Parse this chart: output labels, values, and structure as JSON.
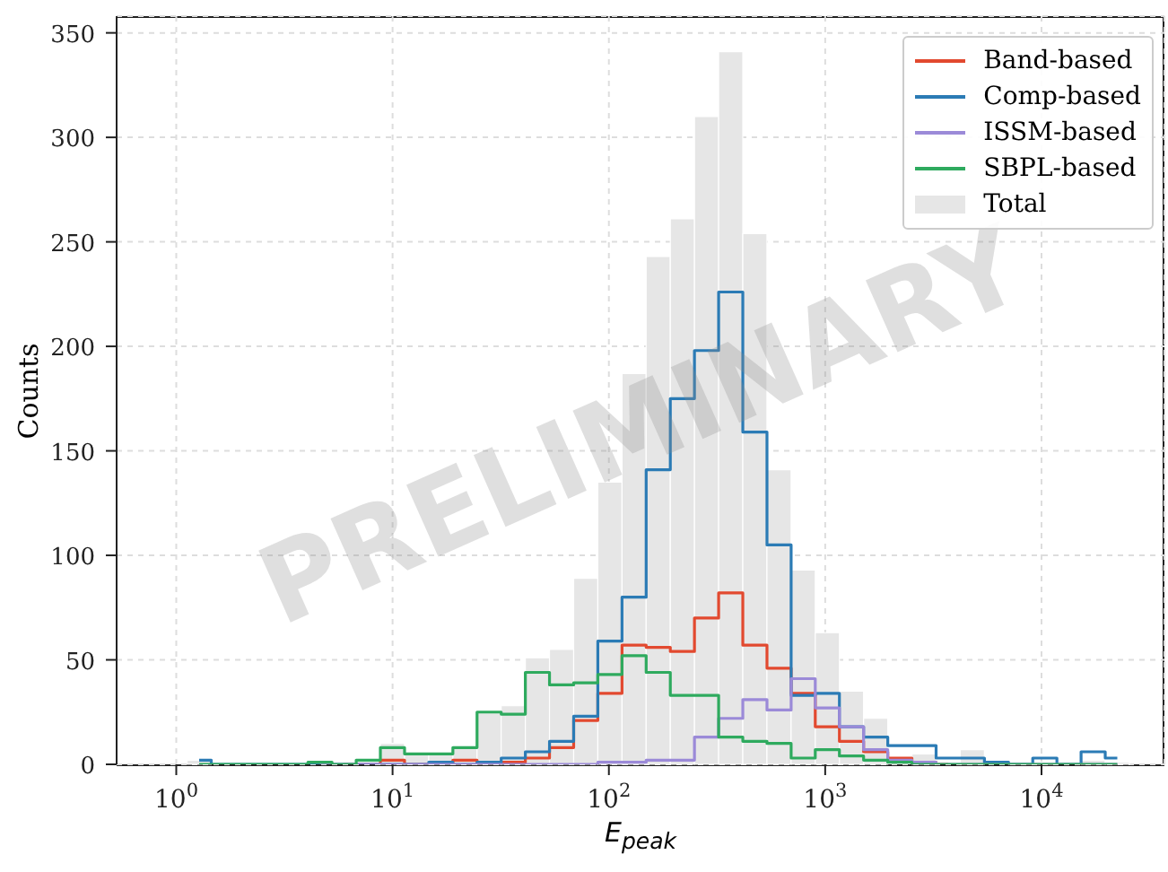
{
  "chart_data": {
    "type": "histogram",
    "xlabel": "E$_{peak}$",
    "ylabel": "Counts",
    "log": "x",
    "bins": [
      1.122,
      1.451,
      1.877,
      2.427,
      3.139,
      4.06,
      5.251,
      6.79,
      8.782,
      11.36,
      14.69,
      19,
      24.57,
      31.78,
      41.1,
      53.15,
      68.74,
      88.9,
      115,
      148.7,
      192.3,
      248.7,
      321.6,
      416,
      538,
      695.8,
      900,
      1164,
      1505,
      1947,
      2518,
      3256,
      4211,
      5446,
      7044,
      9110,
      11780,
      15240,
      19710,
      25490
    ],
    "series": [
      {
        "name": "Band-based",
        "type": "step",
        "color": "#e2492f",
        "x": [
          5.971,
          7.722,
          9.989,
          12.92,
          16.71,
          21.61,
          27.95,
          36.14,
          46.74,
          60.44,
          78.18,
          101.1,
          130.8,
          169.1,
          218.7,
          282.8,
          365.8,
          473.2,
          612,
          791.3,
          1023,
          1323,
          1712,
          2214,
          2863,
          3703
        ],
        "values": [
          0,
          0,
          2,
          0,
          0,
          2,
          1,
          1,
          3,
          8,
          21,
          34,
          57,
          56,
          54,
          70,
          82,
          57,
          46,
          34,
          18,
          11,
          6,
          3,
          1,
          0
        ]
      },
      {
        "name": "Comp-based",
        "type": "step",
        "color": "#2b7bb5",
        "x": [
          1.276,
          1.651,
          2.135,
          2.761,
          3.57,
          4.617,
          5.971,
          7.722,
          9.989,
          12.92,
          16.71,
          21.61,
          27.95,
          36.14,
          46.74,
          60.44,
          78.18,
          101.1,
          130.8,
          169.1,
          218.7,
          282.8,
          365.8,
          473.2,
          612,
          791.3,
          1023,
          1323,
          1712,
          2214,
          2863,
          3703,
          4790,
          6194,
          8012,
          10360,
          13400,
          17330,
          22410
        ],
        "values": [
          2,
          0,
          0,
          0,
          0,
          0,
          0,
          0,
          0,
          0,
          1,
          0,
          1,
          3,
          6,
          11,
          23,
          59,
          80,
          141,
          175,
          198,
          226,
          159,
          105,
          33,
          34,
          18,
          13,
          9,
          9,
          3,
          3,
          1,
          0,
          3,
          0,
          6,
          3
        ]
      },
      {
        "name": "ISSM-based",
        "type": "step",
        "color": "#9b8ad8",
        "x": [
          4.617,
          5.971,
          7.722,
          9.989,
          12.92,
          16.71,
          21.61,
          27.95,
          36.14,
          46.74,
          60.44,
          78.18,
          101.1,
          130.8,
          169.1,
          218.7,
          282.8,
          365.8,
          473.2,
          612,
          791.3,
          1023,
          1323,
          1712,
          2214,
          2863,
          3703,
          4790,
          6194,
          8012,
          10360,
          13400,
          17330,
          22410
        ],
        "values": [
          0,
          0,
          0,
          0,
          0,
          0,
          0,
          0,
          0,
          0,
          0,
          0,
          1,
          1,
          2,
          2,
          13,
          22,
          31,
          26,
          41,
          27,
          18,
          7,
          2,
          1,
          0,
          0,
          0,
          0,
          0,
          0,
          0,
          0
        ]
      },
      {
        "name": "SBPL-based",
        "type": "step",
        "color": "#2eaa5e",
        "x": [
          1.276,
          1.651,
          2.135,
          2.761,
          3.57,
          4.617,
          5.971,
          7.722,
          9.989,
          12.92,
          16.71,
          21.61,
          27.95,
          36.14,
          46.74,
          60.44,
          78.18,
          101.1,
          130.8,
          169.1,
          218.7,
          282.8,
          365.8,
          473.2,
          612,
          791.3,
          1023,
          1323,
          1712,
          2214,
          2863,
          3703,
          4790,
          6194,
          8012,
          10360,
          13400,
          17330,
          22410
        ],
        "values": [
          0,
          0,
          0,
          0,
          0,
          1,
          0,
          2,
          8,
          5,
          5,
          8,
          25,
          24,
          44,
          38,
          39,
          43,
          52,
          44,
          33,
          33,
          13,
          11,
          10,
          3,
          7,
          4,
          2,
          1,
          0,
          0,
          0,
          0,
          0,
          0,
          0,
          0,
          0
        ]
      },
      {
        "name": "Total",
        "type": "histogram",
        "color": "#e6e6e6",
        "values": [
          2,
          0,
          0,
          0,
          0,
          null,
          0,
          null,
          10,
          5,
          5,
          8,
          25,
          28,
          51,
          55,
          89,
          135,
          187,
          243,
          261,
          310,
          341,
          254,
          141,
          93,
          63,
          35,
          22,
          null,
          5,
          null,
          7,
          null,
          1,
          1,
          0,
          2,
          1
        ]
      }
    ],
    "xlim": [
      0.53,
      37000
    ],
    "ylim": [
      0,
      358
    ],
    "xticks": [
      {
        "value": 1,
        "label": "10$^{0}$"
      },
      {
        "value": 10,
        "label": "10$^{1}$"
      },
      {
        "value": 100,
        "label": "10$^{2}$"
      },
      {
        "value": 1000,
        "label": "10$^{3}$"
      },
      {
        "value": 10000,
        "label": "10$^{4}$"
      }
    ],
    "yticks": [
      0,
      50,
      100,
      150,
      200,
      250,
      300,
      350
    ],
    "grid": true,
    "legend": "top right",
    "annotations": [
      "PRELIMINARY"
    ]
  }
}
